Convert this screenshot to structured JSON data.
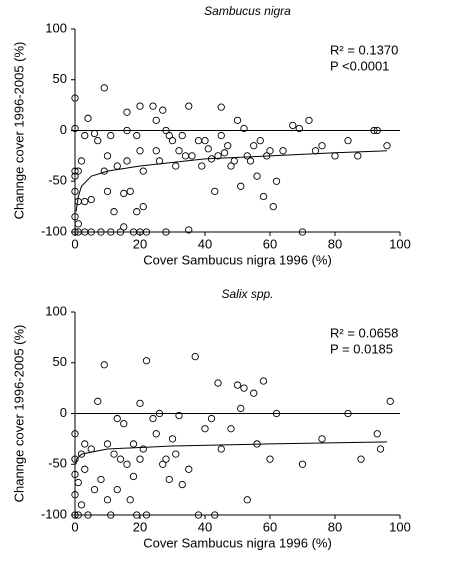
{
  "chart_data": [
    {
      "type": "scatter",
      "title": "Sambucus nigra",
      "x_label": "Cover Sambucus nigra 1996 (%)",
      "y_label": "Channge cover 1996-2005 (%)",
      "annotations": [
        "R² = 0.1370",
        "P <0.0001"
      ],
      "xlim": [
        0,
        100
      ],
      "xticks": [
        0,
        20,
        40,
        60,
        80,
        100
      ],
      "ylim": [
        -100,
        100
      ],
      "yticks": [
        -100,
        -50,
        0,
        50,
        100
      ],
      "reference_line": 0,
      "grid": false,
      "color": "#000000",
      "x": [
        0,
        0,
        0,
        0,
        0,
        0,
        0,
        1,
        1,
        1,
        1,
        2,
        3,
        3,
        3,
        4,
        5,
        5,
        6,
        7,
        8,
        9,
        9,
        10,
        10,
        11,
        11,
        12,
        13,
        14,
        15,
        15,
        16,
        16,
        16,
        17,
        18,
        19,
        19,
        20,
        20,
        20,
        21,
        21,
        22,
        24,
        25,
        25,
        26,
        27,
        28,
        28,
        29,
        30,
        31,
        32,
        33,
        34,
        35,
        35,
        36,
        38,
        39,
        40,
        41,
        42,
        43,
        44,
        45,
        45,
        46,
        47,
        48,
        49,
        50,
        51,
        52,
        53,
        54,
        55,
        56,
        57,
        58,
        59,
        60,
        61,
        62,
        64,
        67,
        69,
        70,
        72,
        74,
        76,
        80,
        84,
        87,
        92,
        93,
        96
      ],
      "values": [
        32,
        2,
        -40,
        -45,
        -60,
        -85,
        -100,
        -100,
        -70,
        -40,
        -92,
        -30,
        -5,
        -70,
        -100,
        12,
        -68,
        -100,
        -3,
        -10,
        -100,
        42,
        -40,
        -25,
        -60,
        -5,
        -100,
        -80,
        -35,
        -100,
        -95,
        -62,
        18,
        0,
        -30,
        -60,
        -100,
        -5,
        -80,
        24,
        -20,
        -100,
        -40,
        -75,
        -100,
        24,
        -20,
        10,
        -30,
        20,
        0,
        -100,
        -5,
        -10,
        -35,
        -20,
        -5,
        -25,
        24,
        -98,
        -25,
        -10,
        -35,
        -10,
        -18,
        -28,
        -60,
        -25,
        23,
        -5,
        -22,
        -15,
        -35,
        -30,
        10,
        -55,
        2,
        -25,
        -30,
        -15,
        -45,
        -10,
        -65,
        -25,
        -20,
        -75,
        -50,
        -20,
        5,
        2,
        -100,
        10,
        -20,
        -15,
        -25,
        -10,
        -25,
        0,
        0,
        -15
      ],
      "fit": {
        "x": [
          0.3,
          1,
          2,
          5,
          10,
          20,
          40,
          60,
          80,
          96
        ],
        "values": [
          -80,
          -65,
          -55,
          -45,
          -40,
          -35,
          -28,
          -25,
          -22,
          -20
        ]
      }
    },
    {
      "type": "scatter",
      "title": "Salix spp.",
      "x_label": "Cover Sambucus nigra 1996 (%)",
      "y_label": "Channge cover 1996-2005 (%)",
      "annotations": [
        "R² = 0.0658",
        "P = 0.0185"
      ],
      "xlim": [
        0,
        100
      ],
      "xticks": [
        0,
        20,
        40,
        60,
        80,
        100
      ],
      "ylim": [
        -100,
        100
      ],
      "yticks": [
        -100,
        -50,
        0,
        50,
        100
      ],
      "reference_line": 0,
      "grid": false,
      "color": "#000000",
      "x": [
        0,
        0,
        0,
        0,
        0,
        1,
        1,
        2,
        2,
        3,
        3,
        4,
        5,
        6,
        7,
        8,
        9,
        10,
        10,
        11,
        12,
        13,
        13,
        14,
        15,
        16,
        17,
        18,
        18,
        19,
        20,
        20,
        21,
        22,
        22,
        24,
        25,
        26,
        27,
        28,
        29,
        30,
        31,
        32,
        33,
        35,
        37,
        38,
        40,
        42,
        43,
        44,
        45,
        48,
        50,
        51,
        52,
        53,
        55,
        56,
        58,
        60,
        62,
        70,
        76,
        84,
        88,
        93,
        94,
        97
      ],
      "values": [
        -20,
        -45,
        -60,
        -80,
        -100,
        -100,
        -68,
        -40,
        -90,
        -30,
        -55,
        -100,
        -35,
        -75,
        12,
        -65,
        48,
        -85,
        -30,
        -100,
        -40,
        -5,
        -75,
        -45,
        -10,
        -50,
        -85,
        -30,
        -62,
        -100,
        10,
        -45,
        -35,
        52,
        -100,
        -5,
        -20,
        0,
        -50,
        -45,
        -65,
        -25,
        -40,
        -2,
        -70,
        -55,
        56,
        -100,
        -15,
        -5,
        -100,
        30,
        -35,
        -15,
        28,
        5,
        25,
        -85,
        20,
        -30,
        32,
        -45,
        0,
        -50,
        -25,
        0,
        -45,
        -20,
        -35,
        12
      ],
      "fit": {
        "x": [
          0.3,
          0.5,
          2,
          10,
          30,
          60,
          96
        ],
        "values": [
          -50,
          -45,
          -40,
          -35,
          -32,
          -30,
          -28
        ]
      }
    }
  ]
}
